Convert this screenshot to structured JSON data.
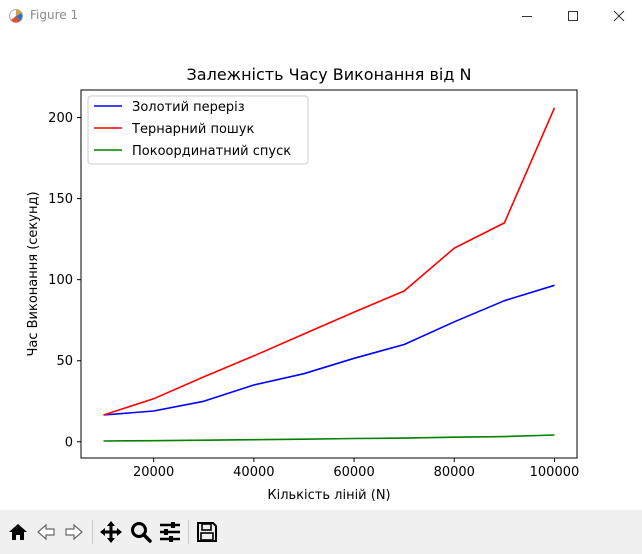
{
  "window": {
    "title": "Figure 1",
    "icons": [
      "matplotlib-icon",
      "minimize-icon",
      "maximize-icon",
      "close-icon"
    ]
  },
  "toolbar": {
    "icons": [
      "home-icon",
      "back-icon",
      "forward-icon",
      "pan-icon",
      "zoom-icon",
      "configure-subplots-icon",
      "save-icon"
    ]
  },
  "colors": {
    "golden": "#0000ff",
    "ternary": "#ff0000",
    "coordinate": "#008000"
  },
  "chart_data": {
    "type": "line",
    "title": "Залежність Часу Виконання від N",
    "xlabel": "Кількість ліній (N)",
    "ylabel": "Час Виконання (секунд)",
    "xlim": [
      5500,
      104500
    ],
    "ylim": [
      -10,
      217
    ],
    "xticks": [
      20000,
      40000,
      60000,
      80000,
      100000
    ],
    "xtick_labels": [
      "20000",
      "40000",
      "60000",
      "80000",
      "100000"
    ],
    "yticks": [
      0,
      50,
      100,
      150,
      200
    ],
    "ytick_labels": [
      "0",
      "50",
      "100",
      "150",
      "200"
    ],
    "grid": false,
    "legend_position": "upper left",
    "x": [
      10000,
      20000,
      30000,
      40000,
      50000,
      60000,
      70000,
      80000,
      90000,
      100000
    ],
    "series": [
      {
        "name": "Золотий переріз",
        "color": "#0000ff",
        "values": [
          16.5,
          19,
          25,
          35,
          42,
          51.5,
          60,
          74,
          87,
          96.5
        ]
      },
      {
        "name": "Тернарний пошук",
        "color": "#ff0000",
        "values": [
          16.5,
          26.5,
          40,
          53,
          66.5,
          80,
          93,
          119.5,
          135,
          206
        ]
      },
      {
        "name": "Покоординатний спуск",
        "color": "#008000",
        "values": [
          0.5,
          0.7,
          1,
          1.3,
          1.6,
          2,
          2.3,
          2.8,
          3.2,
          4.2
        ]
      }
    ]
  }
}
